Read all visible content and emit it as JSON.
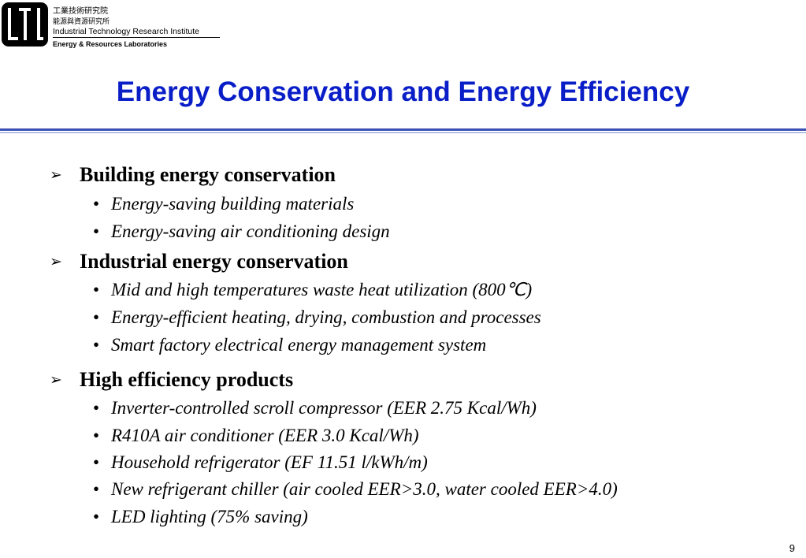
{
  "header": {
    "org_zh_1": "工業技術研究院",
    "org_zh_2": "能源與資源研究所",
    "org_en_1": "Industrial Technology Research Institute",
    "org_en_2": "Energy & Resources Laboratories"
  },
  "title": "Energy Conservation and Energy Efficiency",
  "sections": [
    {
      "heading": "Building energy conservation",
      "items": [
        "Energy-saving building materials",
        "Energy-saving air conditioning design"
      ]
    },
    {
      "heading": "Industrial energy conservation",
      "items": [
        "Mid and high temperatures waste heat utilization (800℃)",
        "Energy-efficient heating, drying, combustion and processes",
        "Smart factory electrical energy management system"
      ]
    },
    {
      "heading": "High efficiency products",
      "items": [
        "Inverter-controlled scroll compressor (EER 2.75 Kcal/Wh)",
        "R410A air conditioner (EER 3.0 Kcal/Wh)",
        "Household refrigerator (EF 11.51 l/kWh/m)",
        "New refrigerant chiller (air cooled EER>3.0, water cooled EER>4.0)",
        "LED lighting (75% saving)"
      ]
    }
  ],
  "page_number": "9",
  "colors": {
    "title": "#0a1ec8",
    "rule": "#3a4fb4"
  }
}
